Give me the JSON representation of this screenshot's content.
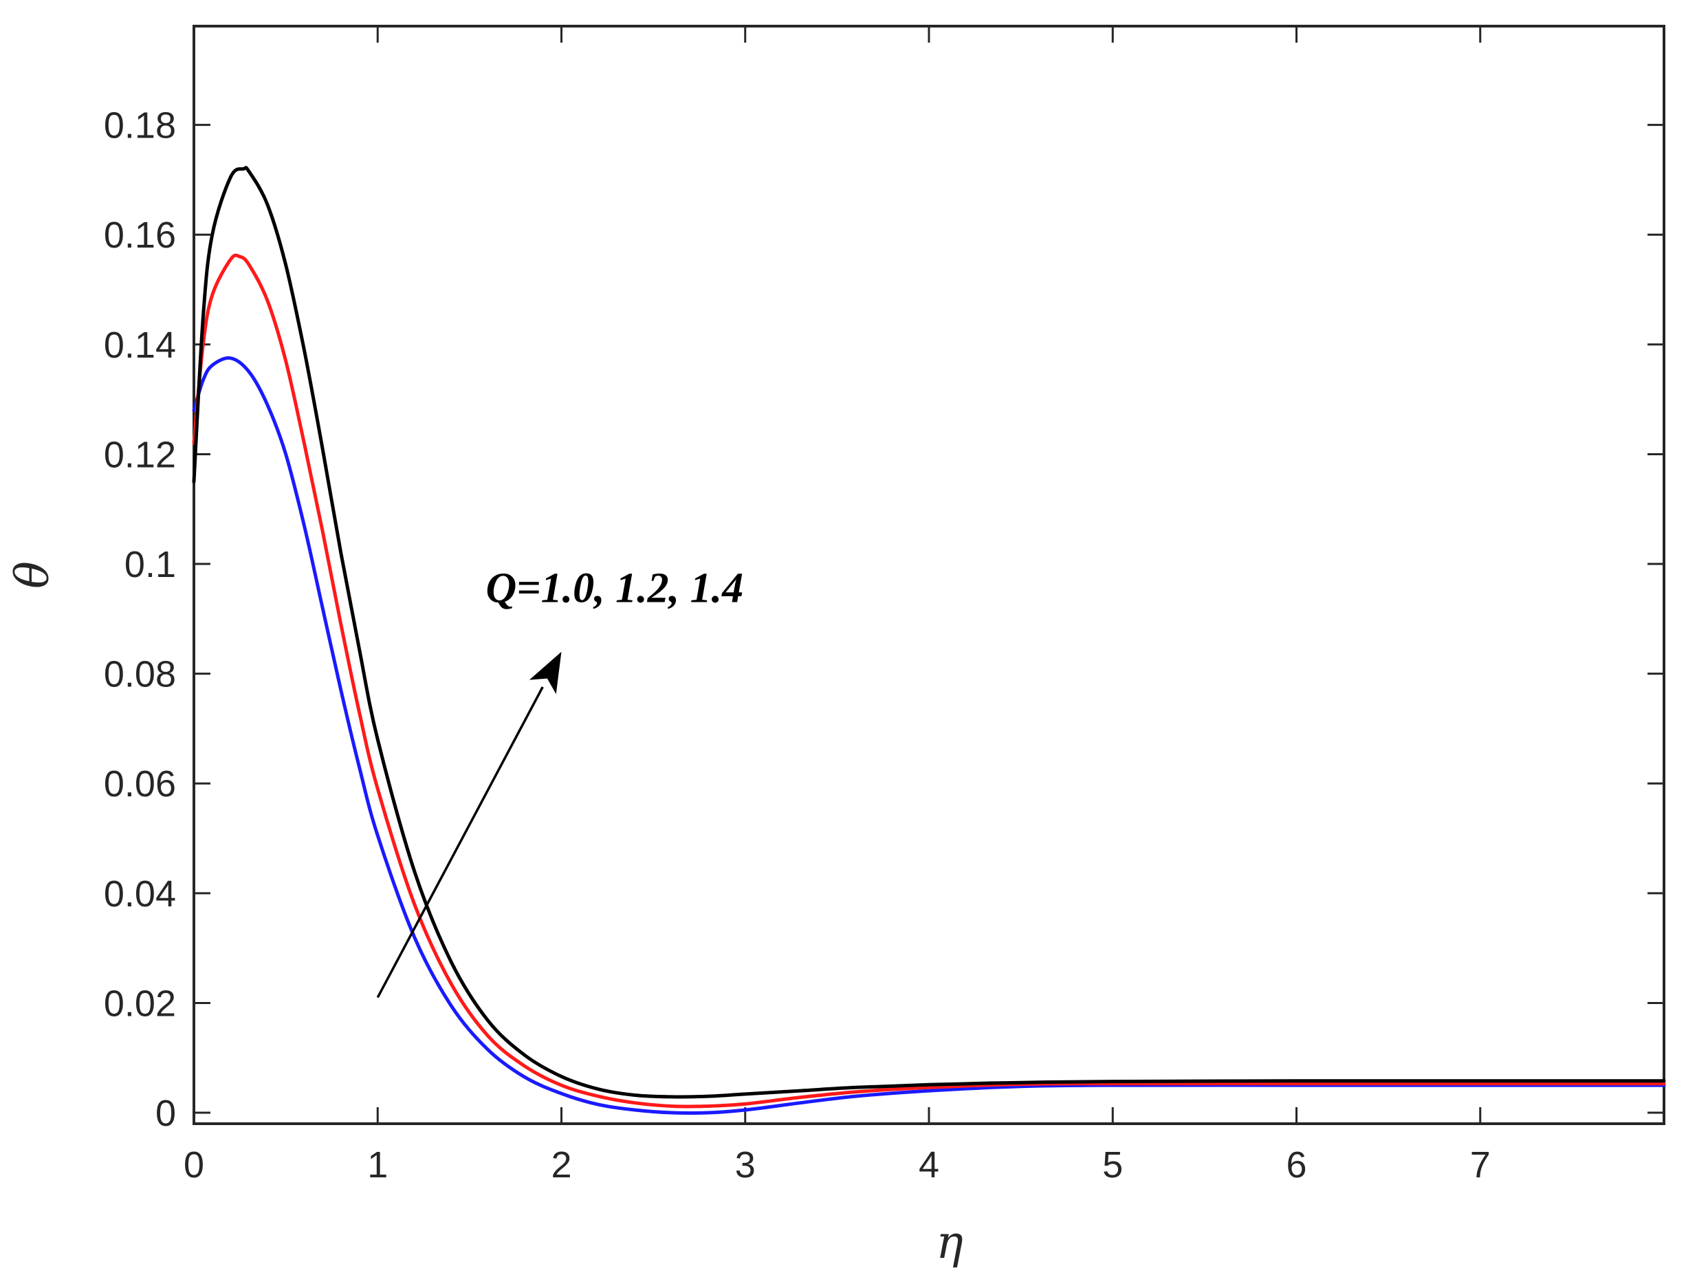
{
  "chart_data": {
    "type": "line",
    "title": "",
    "xlabel": "η",
    "ylabel": "θ",
    "xlim": [
      0,
      8
    ],
    "ylim": [
      -0.002,
      0.198
    ],
    "xticks": [
      "0",
      "1",
      "2",
      "3",
      "4",
      "5",
      "6",
      "7"
    ],
    "yticks": [
      "0",
      "0.02",
      "0.04",
      "0.06",
      "0.08",
      "0.1",
      "0.12",
      "0.14",
      "0.16",
      "0.18"
    ],
    "grid": false,
    "legend": "none",
    "annotation": {
      "text": "Q=1.0, 1.2, 1.4",
      "arrow_from": [
        1.0,
        0.021
      ],
      "arrow_to": [
        2.0,
        0.084
      ]
    },
    "series": [
      {
        "color": "#1a1aff",
        "x": [
          0,
          0.05,
          0.1,
          0.2,
          0.3,
          0.4,
          0.5,
          0.6,
          0.7,
          0.8,
          0.9,
          1.0,
          1.2,
          1.4,
          1.6,
          1.8,
          2.0,
          2.2,
          2.4,
          2.6,
          2.8,
          3.0,
          3.3,
          3.6,
          4.0,
          4.5,
          5.0,
          6.0,
          7.0,
          8.0
        ],
        "y": [
          0.128,
          0.1335,
          0.1362,
          0.1375,
          0.135,
          0.129,
          0.12,
          0.107,
          0.092,
          0.077,
          0.063,
          0.0505,
          0.032,
          0.0195,
          0.0115,
          0.0065,
          0.0035,
          0.0015,
          0.0005,
          0.0,
          0.0,
          0.0005,
          0.0018,
          0.003,
          0.004,
          0.0048,
          0.005,
          0.005,
          0.005,
          0.005
        ]
      },
      {
        "color": "#ff1a1a",
        "x": [
          0,
          0.05,
          0.1,
          0.2,
          0.25,
          0.3,
          0.4,
          0.5,
          0.6,
          0.7,
          0.8,
          0.9,
          1.0,
          1.2,
          1.4,
          1.6,
          1.8,
          2.0,
          2.2,
          2.4,
          2.6,
          2.8,
          3.0,
          3.3,
          3.6,
          4.0,
          4.5,
          5.0,
          6.0,
          7.0,
          8.0
        ],
        "y": [
          0.122,
          0.14,
          0.149,
          0.1555,
          0.156,
          0.1545,
          0.148,
          0.137,
          0.122,
          0.106,
          0.089,
          0.073,
          0.059,
          0.038,
          0.0235,
          0.014,
          0.0085,
          0.005,
          0.003,
          0.0018,
          0.0012,
          0.0012,
          0.0016,
          0.0028,
          0.0038,
          0.0046,
          0.0052,
          0.0053,
          0.0053,
          0.0053,
          0.0053
        ]
      },
      {
        "color": "#000000",
        "x": [
          0,
          0.05,
          0.1,
          0.2,
          0.27,
          0.3,
          0.4,
          0.5,
          0.6,
          0.7,
          0.8,
          0.9,
          1.0,
          1.2,
          1.4,
          1.6,
          1.8,
          2.0,
          2.2,
          2.4,
          2.6,
          2.8,
          3.0,
          3.3,
          3.6,
          4.0,
          4.5,
          5.0,
          6.0,
          7.0,
          8.0
        ],
        "y": [
          0.115,
          0.145,
          0.16,
          0.1705,
          0.172,
          0.1715,
          0.1655,
          0.1545,
          0.139,
          0.121,
          0.102,
          0.0845,
          0.068,
          0.044,
          0.0275,
          0.0168,
          0.0105,
          0.0066,
          0.0043,
          0.0032,
          0.0029,
          0.003,
          0.0034,
          0.004,
          0.0046,
          0.0051,
          0.0055,
          0.0057,
          0.0058,
          0.0058,
          0.0058
        ]
      }
    ]
  }
}
